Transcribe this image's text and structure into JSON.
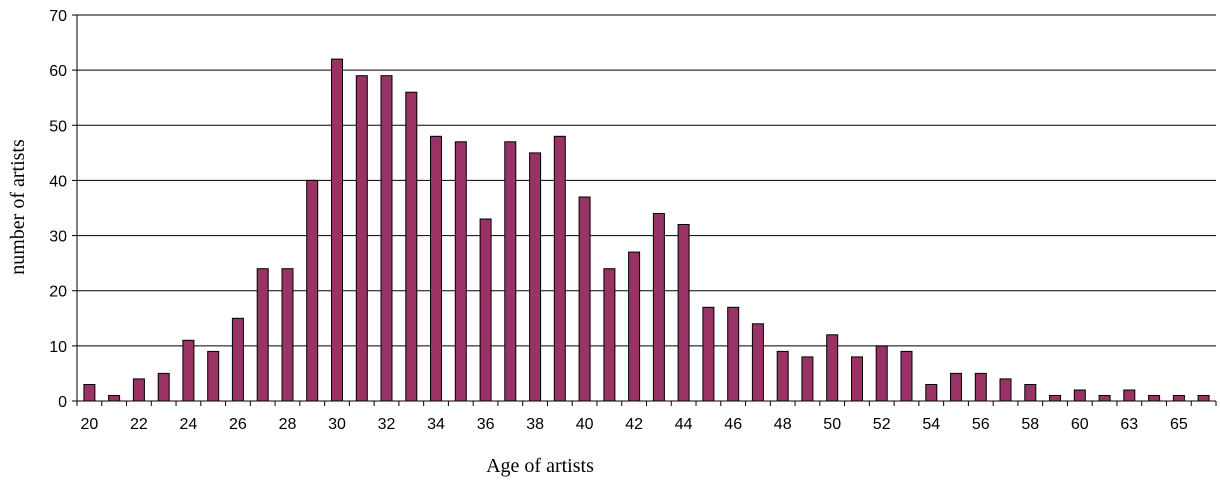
{
  "chart_data": {
    "type": "bar",
    "title": "",
    "xlabel": "Age of artists",
    "ylabel": "number of artists",
    "ylim": [
      0,
      70
    ],
    "yticks": [
      0,
      10,
      20,
      30,
      40,
      50,
      60,
      70
    ],
    "grid": "horizontal",
    "legend": "none",
    "bar_color": "#993366",
    "bar_edge_color": "#000000",
    "categories": [
      "20",
      "21",
      "22",
      "23",
      "24",
      "25",
      "26",
      "27",
      "28",
      "29",
      "30",
      "31",
      "32",
      "33",
      "34",
      "35",
      "36",
      "37",
      "38",
      "39",
      "40",
      "41",
      "42",
      "43",
      "44",
      "45",
      "46",
      "47",
      "48",
      "49",
      "50",
      "51",
      "52",
      "53",
      "54",
      "55",
      "56",
      "57",
      "58",
      "59",
      "60",
      "62",
      "63",
      "64",
      "65",
      "66"
    ],
    "tick_labels": [
      "20",
      "22",
      "24",
      "26",
      "28",
      "30",
      "32",
      "34",
      "36",
      "38",
      "40",
      "42",
      "44",
      "46",
      "48",
      "50",
      "52",
      "54",
      "56",
      "58",
      "60",
      "63",
      "65"
    ],
    "values": [
      3,
      1,
      4,
      5,
      11,
      9,
      15,
      24,
      24,
      40,
      62,
      59,
      59,
      56,
      48,
      47,
      33,
      47,
      45,
      48,
      37,
      24,
      27,
      34,
      32,
      17,
      17,
      14,
      9,
      8,
      12,
      8,
      10,
      9,
      3,
      5,
      5,
      4,
      3,
      1,
      2,
      1,
      2,
      1,
      1,
      1
    ]
  }
}
